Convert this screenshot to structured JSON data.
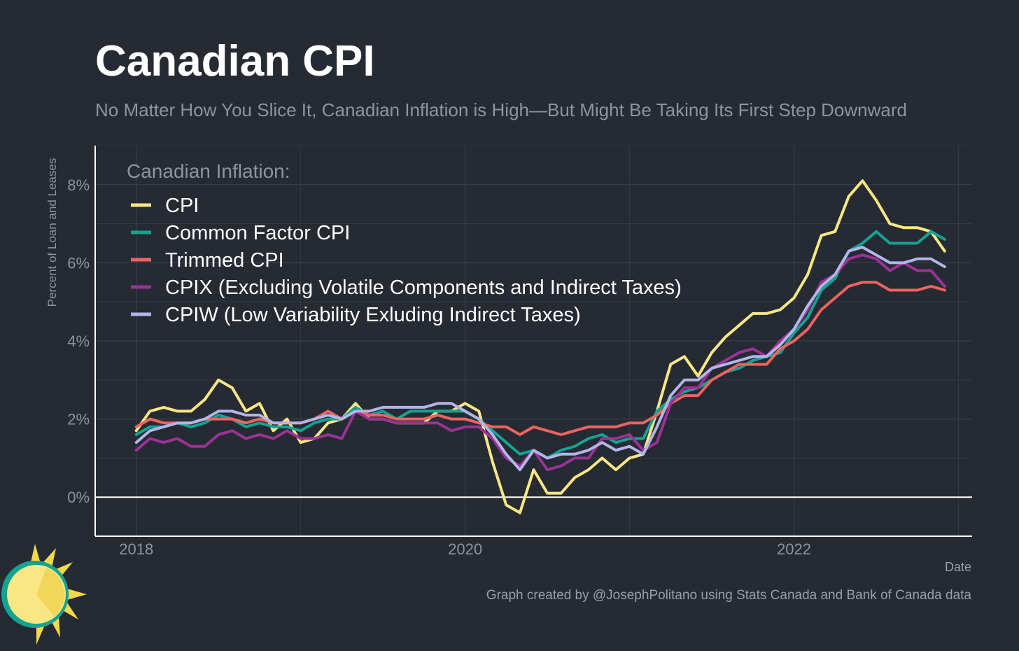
{
  "header": {
    "title": "Canadian CPI",
    "subtitle": "No Matter How You Slice It, Canadian Inflation is High—But Might Be Taking Its First Step Downward"
  },
  "footer": {
    "caption": "Graph created by @JosephPolitano using Stats Canada and Bank of Canada data",
    "logo_icon": "sun-logo-icon"
  },
  "colors": {
    "background": "#252a33",
    "grid": "#3d434d",
    "axis": "#ffffff",
    "text_muted": "#8f949c"
  },
  "chart_data": {
    "type": "line",
    "title": "Canadian CPI",
    "subtitle": "No Matter How You Slice It, Canadian Inflation is High—But Might Be Taking Its First Step Downward",
    "xlabel": "Date",
    "ylabel": "Percent of Loan and Leases",
    "legend_title": "Canadian Inflation:",
    "legend_position": "top-left",
    "grid": true,
    "xlim": [
      "2017-10",
      "2023-02"
    ],
    "ylim": [
      -1,
      9
    ],
    "x_ticks": [
      "2018",
      "2020",
      "2022"
    ],
    "y_ticks": [
      "0%",
      "2%",
      "4%",
      "6%",
      "8%"
    ],
    "y_tick_values": [
      0,
      2,
      4,
      6,
      8
    ],
    "zero_line": true,
    "x_start": "2018-01",
    "x_end": "2022-11",
    "series": [
      {
        "name": "CPI",
        "color": "#f9e784",
        "values": [
          1.7,
          2.2,
          2.3,
          2.2,
          2.2,
          2.5,
          3.0,
          2.8,
          2.2,
          2.4,
          1.7,
          2.0,
          1.4,
          1.5,
          1.9,
          2.0,
          2.4,
          2.0,
          2.0,
          1.9,
          1.9,
          1.9,
          2.2,
          2.2,
          2.4,
          2.2,
          0.9,
          -0.2,
          -0.4,
          0.7,
          0.1,
          0.1,
          0.5,
          0.7,
          1.0,
          0.7,
          1.0,
          1.1,
          2.2,
          3.4,
          3.6,
          3.1,
          3.7,
          4.1,
          4.4,
          4.7,
          4.7,
          4.8,
          5.1,
          5.7,
          6.7,
          6.8,
          7.7,
          8.1,
          7.6,
          7.0,
          6.9,
          6.9,
          6.8,
          6.3
        ]
      },
      {
        "name": "Common Factor CPI",
        "color": "#14a392",
        "values": [
          1.6,
          1.8,
          1.8,
          1.9,
          1.8,
          1.9,
          2.1,
          2.0,
          1.8,
          1.9,
          1.8,
          1.8,
          1.7,
          1.9,
          2.0,
          2.0,
          2.3,
          2.1,
          2.2,
          2.0,
          2.2,
          2.2,
          2.2,
          2.2,
          2.2,
          2.0,
          1.7,
          1.4,
          1.1,
          1.2,
          1.0,
          1.2,
          1.3,
          1.5,
          1.6,
          1.4,
          1.5,
          1.5,
          2.2,
          2.5,
          2.7,
          2.8,
          3.0,
          3.2,
          3.3,
          3.5,
          3.6,
          3.7,
          4.2,
          4.6,
          5.3,
          5.6,
          6.3,
          6.5,
          6.8,
          6.5,
          6.5,
          6.5,
          6.8,
          6.6
        ]
      },
      {
        "name": "Trimmed CPI",
        "color": "#ec6460",
        "values": [
          1.8,
          2.0,
          1.9,
          1.9,
          1.9,
          2.0,
          2.0,
          2.0,
          1.9,
          2.0,
          1.9,
          1.9,
          1.9,
          2.0,
          2.2,
          2.0,
          2.2,
          2.1,
          2.1,
          2.0,
          2.0,
          2.0,
          2.1,
          2.0,
          2.0,
          1.9,
          1.8,
          1.8,
          1.6,
          1.8,
          1.7,
          1.6,
          1.7,
          1.8,
          1.8,
          1.8,
          1.9,
          1.9,
          2.1,
          2.4,
          2.6,
          2.6,
          3.0,
          3.2,
          3.4,
          3.4,
          3.4,
          3.8,
          4.0,
          4.3,
          4.8,
          5.1,
          5.4,
          5.5,
          5.5,
          5.3,
          5.3,
          5.3,
          5.4,
          5.3
        ]
      },
      {
        "name": "CPIX (Excluding Volatile Components and Indirect Taxes)",
        "color": "#9a3396",
        "values": [
          1.2,
          1.5,
          1.4,
          1.5,
          1.3,
          1.3,
          1.6,
          1.7,
          1.5,
          1.6,
          1.5,
          1.7,
          1.5,
          1.5,
          1.6,
          1.5,
          2.2,
          2.0,
          2.0,
          1.9,
          1.9,
          1.9,
          1.9,
          1.7,
          1.8,
          1.8,
          1.5,
          1.0,
          0.8,
          1.2,
          0.7,
          0.8,
          1.0,
          1.0,
          1.5,
          1.5,
          1.6,
          1.2,
          1.4,
          2.4,
          2.8,
          2.8,
          3.3,
          3.5,
          3.7,
          3.8,
          3.6,
          4.0,
          4.3,
          4.8,
          5.5,
          5.7,
          6.1,
          6.2,
          6.1,
          5.8,
          6.0,
          5.8,
          5.8,
          5.4
        ]
      },
      {
        "name": "CPIW (Low Variability Exluding Indirect Taxes)",
        "color": "#b3b5e8",
        "values": [
          1.4,
          1.7,
          1.8,
          1.9,
          1.9,
          2.0,
          2.2,
          2.2,
          2.1,
          2.1,
          1.9,
          1.9,
          1.9,
          2.0,
          2.1,
          2.0,
          2.2,
          2.2,
          2.3,
          2.3,
          2.3,
          2.3,
          2.4,
          2.4,
          2.2,
          2.0,
          1.6,
          1.1,
          0.7,
          1.2,
          1.0,
          1.1,
          1.1,
          1.2,
          1.4,
          1.2,
          1.3,
          1.1,
          1.8,
          2.6,
          3.0,
          3.0,
          3.3,
          3.4,
          3.5,
          3.6,
          3.6,
          3.9,
          4.3,
          4.9,
          5.4,
          5.7,
          6.3,
          6.4,
          6.2,
          6.0,
          6.0,
          6.1,
          6.1,
          5.9
        ]
      }
    ]
  }
}
